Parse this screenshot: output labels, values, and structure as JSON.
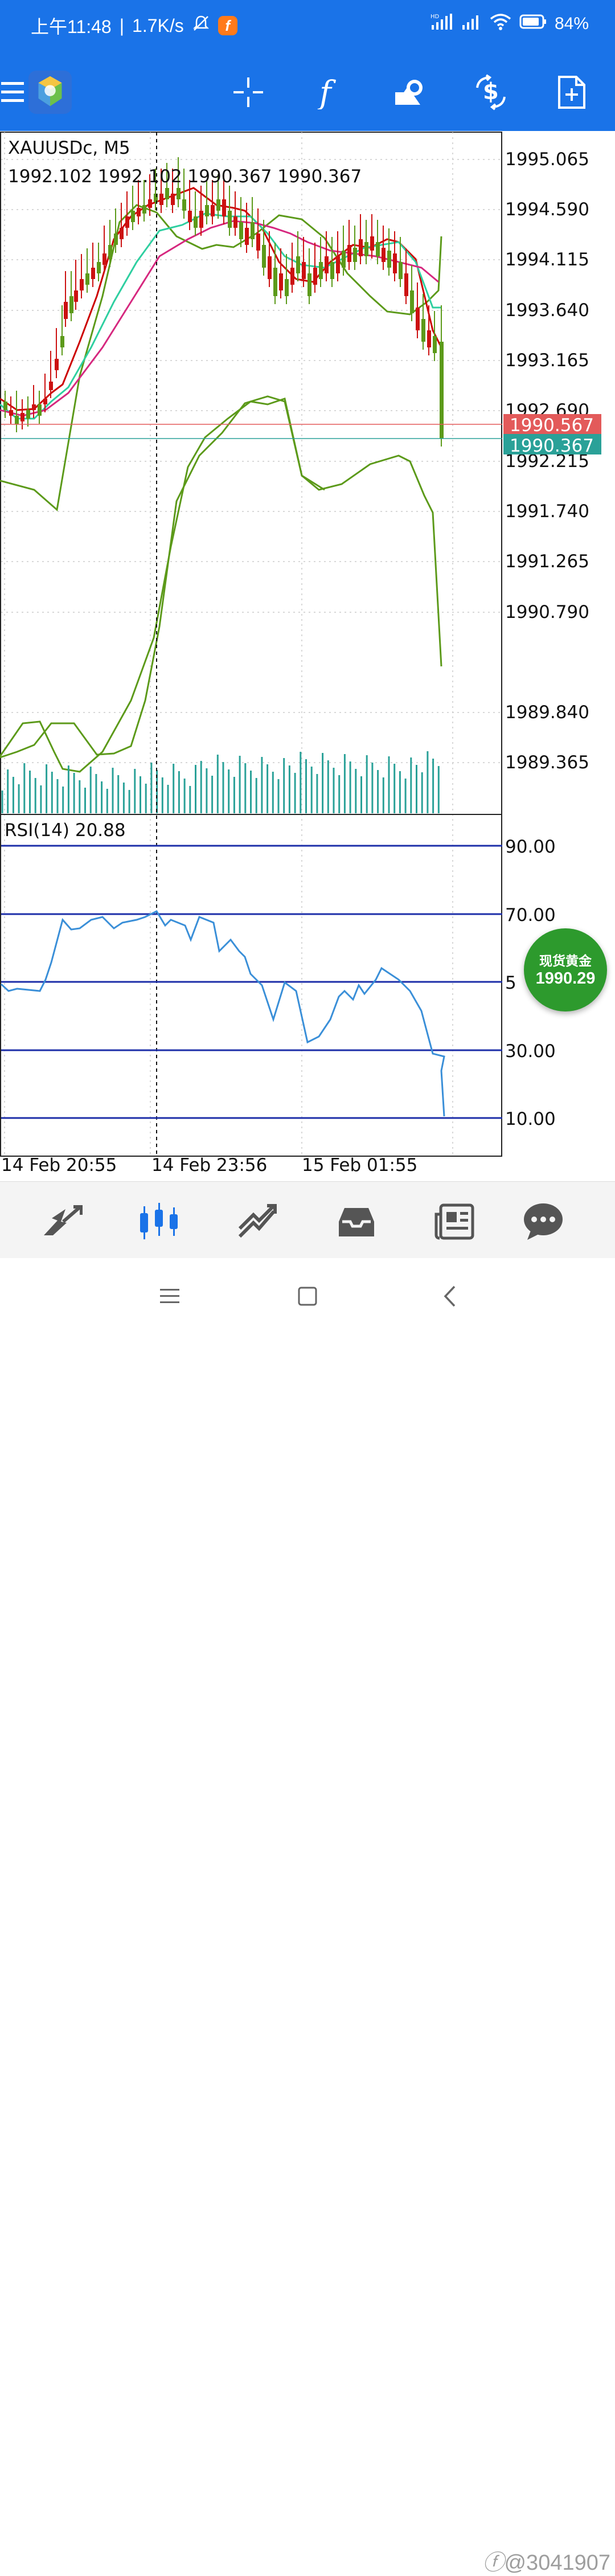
{
  "status_bar": {
    "time": "上午11:48",
    "separator": "|",
    "speed": "1.7K/s",
    "app_badge": "f",
    "network_hd": "HD",
    "battery": "84%"
  },
  "toolbar": {
    "icons": [
      "menu-icon",
      "app-logo-icon",
      "crosshair-icon",
      "indicator-f-icon",
      "objects-icon",
      "trade-icon",
      "new-order-icon"
    ]
  },
  "chart": {
    "symbol": "XAUUSDc, M5",
    "ohlc": "1992.102 1992.102 1990.367 1990.367",
    "price_axis": [
      "1995.065",
      "1994.590",
      "1994.115",
      "1993.640",
      "1993.165",
      "1992.690",
      "1992.215",
      "1991.740",
      "1991.265",
      "1990.790",
      "1989.840",
      "1989.365"
    ],
    "ask_label": "1990.567",
    "bid_label": "1990.367",
    "ask_color": "#e35a5a",
    "bid_color": "#2aa198",
    "time_axis": [
      "14 Feb 20:55",
      "14 Feb 23:56",
      "15 Feb 01:55"
    ],
    "indicator_title": "RSI(14) 20.88",
    "rsi_levels": [
      "90.00",
      "70.00",
      "5",
      "30.00",
      "10.00"
    ]
  },
  "spot": {
    "label": "现货黄金",
    "value": "1990.29"
  },
  "bottom_nav": {
    "items": [
      "quotes-icon",
      "chart-icon",
      "trade-icon",
      "history-icon",
      "news-icon",
      "chat-icon"
    ]
  },
  "watermark": "@3041907"
}
